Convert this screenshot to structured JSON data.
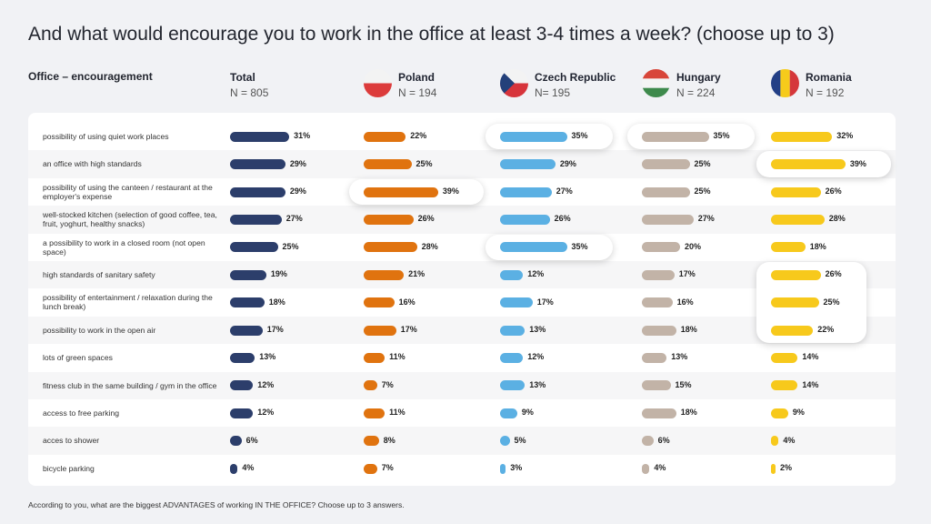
{
  "title": "And what would encourage you to work in the office at least 3-4 times a week? (choose up to 3)",
  "header_label": "Office – encouragement",
  "footnote": "According to you, what are the biggest ADVANTAGES of working IN THE OFFICE? Choose up to 3 answers.",
  "colors": {
    "Total": "#2c3e6b",
    "Poland": "#e0730f",
    "Czech Republic": "#5bb0e3",
    "Hungary": "#c2b3a7",
    "Romania": "#f7c91c"
  },
  "chart_data": {
    "type": "bar",
    "value_suffix": "%",
    "categories": [
      "possibility of using quiet work places",
      "an office with high standards",
      "possibility of using the canteen / restaurant at the employer's expense",
      "well-stocked kitchen (selection of good coffee, tea, fruit, yoghurt, healthy snacks)",
      "a possibility to work in a closed room (not open space)",
      "high standards of sanitary safety",
      "possibility of entertainment / relaxation during the lunch break)",
      "possibility to work in the open air",
      "lots of green spaces",
      "fitness club in the same building / gym in the office",
      "access to free parking",
      "acces to shower",
      "bicycle parking"
    ],
    "series": [
      {
        "name": "Total",
        "n": "N = 805",
        "values": [
          31,
          29,
          29,
          27,
          25,
          19,
          18,
          17,
          13,
          12,
          12,
          6,
          4
        ]
      },
      {
        "name": "Poland",
        "n": "N = 194",
        "values": [
          22,
          25,
          39,
          26,
          28,
          21,
          16,
          17,
          11,
          7,
          11,
          8,
          7
        ]
      },
      {
        "name": "Czech Republic",
        "n": "N= 195",
        "values": [
          35,
          29,
          27,
          26,
          35,
          12,
          17,
          13,
          12,
          13,
          9,
          5,
          3
        ]
      },
      {
        "name": "Hungary",
        "n": "N = 224",
        "values": [
          35,
          25,
          25,
          27,
          20,
          17,
          16,
          18,
          13,
          15,
          18,
          6,
          4
        ]
      },
      {
        "name": "Romania",
        "n": "N = 192",
        "values": [
          32,
          39,
          26,
          28,
          18,
          26,
          25,
          22,
          14,
          14,
          9,
          4,
          2
        ]
      }
    ],
    "highlights": [
      {
        "series": 2,
        "rows": [
          0
        ]
      },
      {
        "series": 3,
        "rows": [
          0
        ]
      },
      {
        "series": 4,
        "rows": [
          1
        ]
      },
      {
        "series": 1,
        "rows": [
          2
        ]
      },
      {
        "series": 2,
        "rows": [
          4
        ]
      },
      {
        "series": 4,
        "rows": [
          5,
          6,
          7
        ]
      }
    ]
  }
}
